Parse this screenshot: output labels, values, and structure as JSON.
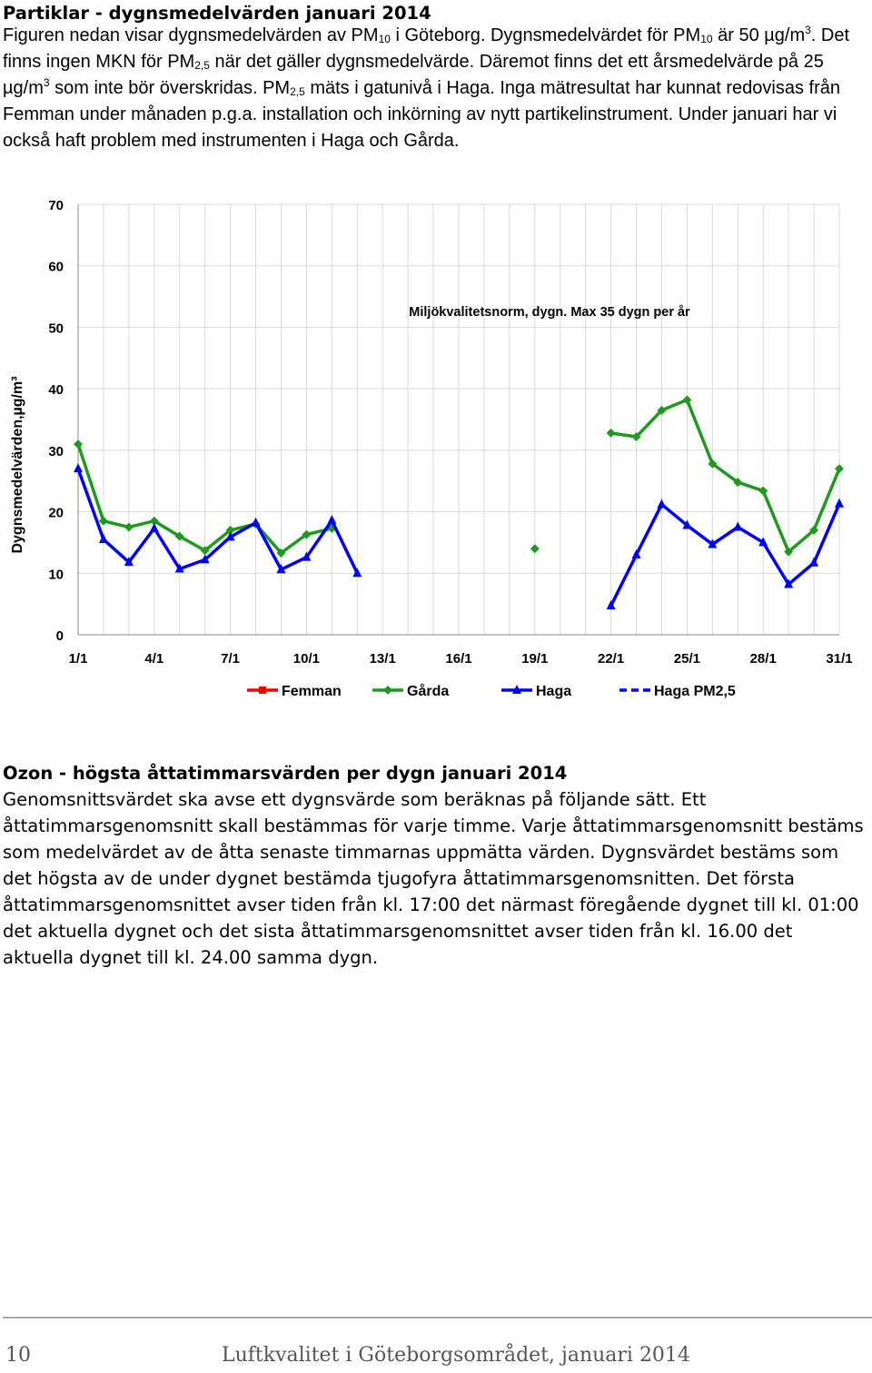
{
  "pm": {
    "heading": "Partiklar - dygnsmedelvärden januari 2014",
    "p1": "Figuren nedan visar dygnsmedelvärden av PM",
    "p1_sub": "10",
    "p2": " i Göteborg. Dygnsmedelvärdet för PM",
    "p2_sub": "10",
    "p3": " är 50 µg/m",
    "p3_sup": "3",
    "p4": ". Det finns ingen MKN för PM",
    "p4_sub": "2,5",
    "p5": " när det gäller dygnsmedelvärde. Däremot finns det ett årsmedelvärde på 25 µg/m",
    "p5_sup": "3",
    "p6": " som inte bör överskridas. PM",
    "p6_sub": "2,5",
    "p7": " mäts i gatunivå i Haga. Inga mätresultat har kunnat redovisas från Femman under månaden p.g.a. installation och inkörning av nytt partikelinstrument. Under januari har vi också haft problem med instrumenten i Haga och Gårda."
  },
  "chart_data": {
    "type": "line",
    "ylabel": "Dygnsmedelvärden,µg/m³",
    "ylim": [
      0,
      70
    ],
    "yticks": [
      0,
      10,
      20,
      30,
      40,
      50,
      60,
      70
    ],
    "xticks": [
      "1/1",
      "4/1",
      "7/1",
      "10/1",
      "13/1",
      "16/1",
      "19/1",
      "22/1",
      "25/1",
      "28/1",
      "31/1"
    ],
    "days": 31,
    "annotation": "Miljökvalitetsnorm, dygn. Max 35 dygn per år",
    "series": [
      {
        "name": "Femman",
        "color": "#ff0000",
        "marker": "square",
        "dash": false,
        "values": []
      },
      {
        "name": "Gårda",
        "color": "#1e9b1e",
        "marker": "diamond",
        "dash": false,
        "values": [
          31,
          18.5,
          17.5,
          18.5,
          16,
          13.7,
          17,
          18,
          13.3,
          16.3,
          17.3,
          null,
          null,
          null,
          null,
          null,
          null,
          null,
          14,
          null,
          null,
          32.8,
          32.2,
          36.5,
          38.2,
          27.8,
          24.8,
          23.4,
          13.5,
          17,
          27
        ]
      },
      {
        "name": "Haga",
        "color": "#0000ff",
        "marker": "triangle",
        "dash": false,
        "values": [
          27,
          15.5,
          11.8,
          17.3,
          10.7,
          12.2,
          15.9,
          18.2,
          10.6,
          12.6,
          18.6,
          10,
          null,
          null,
          null,
          null,
          null,
          null,
          null,
          null,
          null,
          4.7,
          13,
          21.2,
          17.8,
          14.7,
          17.5,
          15,
          8.2,
          11.7,
          21.3
        ]
      },
      {
        "name": "Haga PM2,5",
        "color": "#0000ff",
        "marker": "none",
        "dash": true,
        "values": []
      }
    ]
  },
  "ozon": {
    "heading": "Ozon - högsta åttatimmarsvärden per dygn januari 2014",
    "body": "Genomsnittsvärdet ska avse ett dygnsvärde som beräknas på följande sätt. Ett åttatimmarsgenomsnitt skall bestämmas för varje timme. Varje åttatimmarsgenomsnitt bestäms som medelvärdet av de åtta senaste timmarnas uppmätta värden. Dygnsvärdet bestäms som det högsta av de under dygnet bestämda tjugofyra åttatimmarsgenomsnitten. Det första åttatimmarsgenomsnittet avser tiden från kl. 17:00 det närmast föregående dygnet till kl. 01:00 det aktuella dygnet och det sista åttatimmarsgenomsnittet avser tiden från kl. 16.00 det aktuella dygnet till kl. 24.00 samma dygn."
  },
  "footer": {
    "page_number": "10",
    "title": "Luftkvalitet i Göteborgsområdet, januari 2014"
  }
}
